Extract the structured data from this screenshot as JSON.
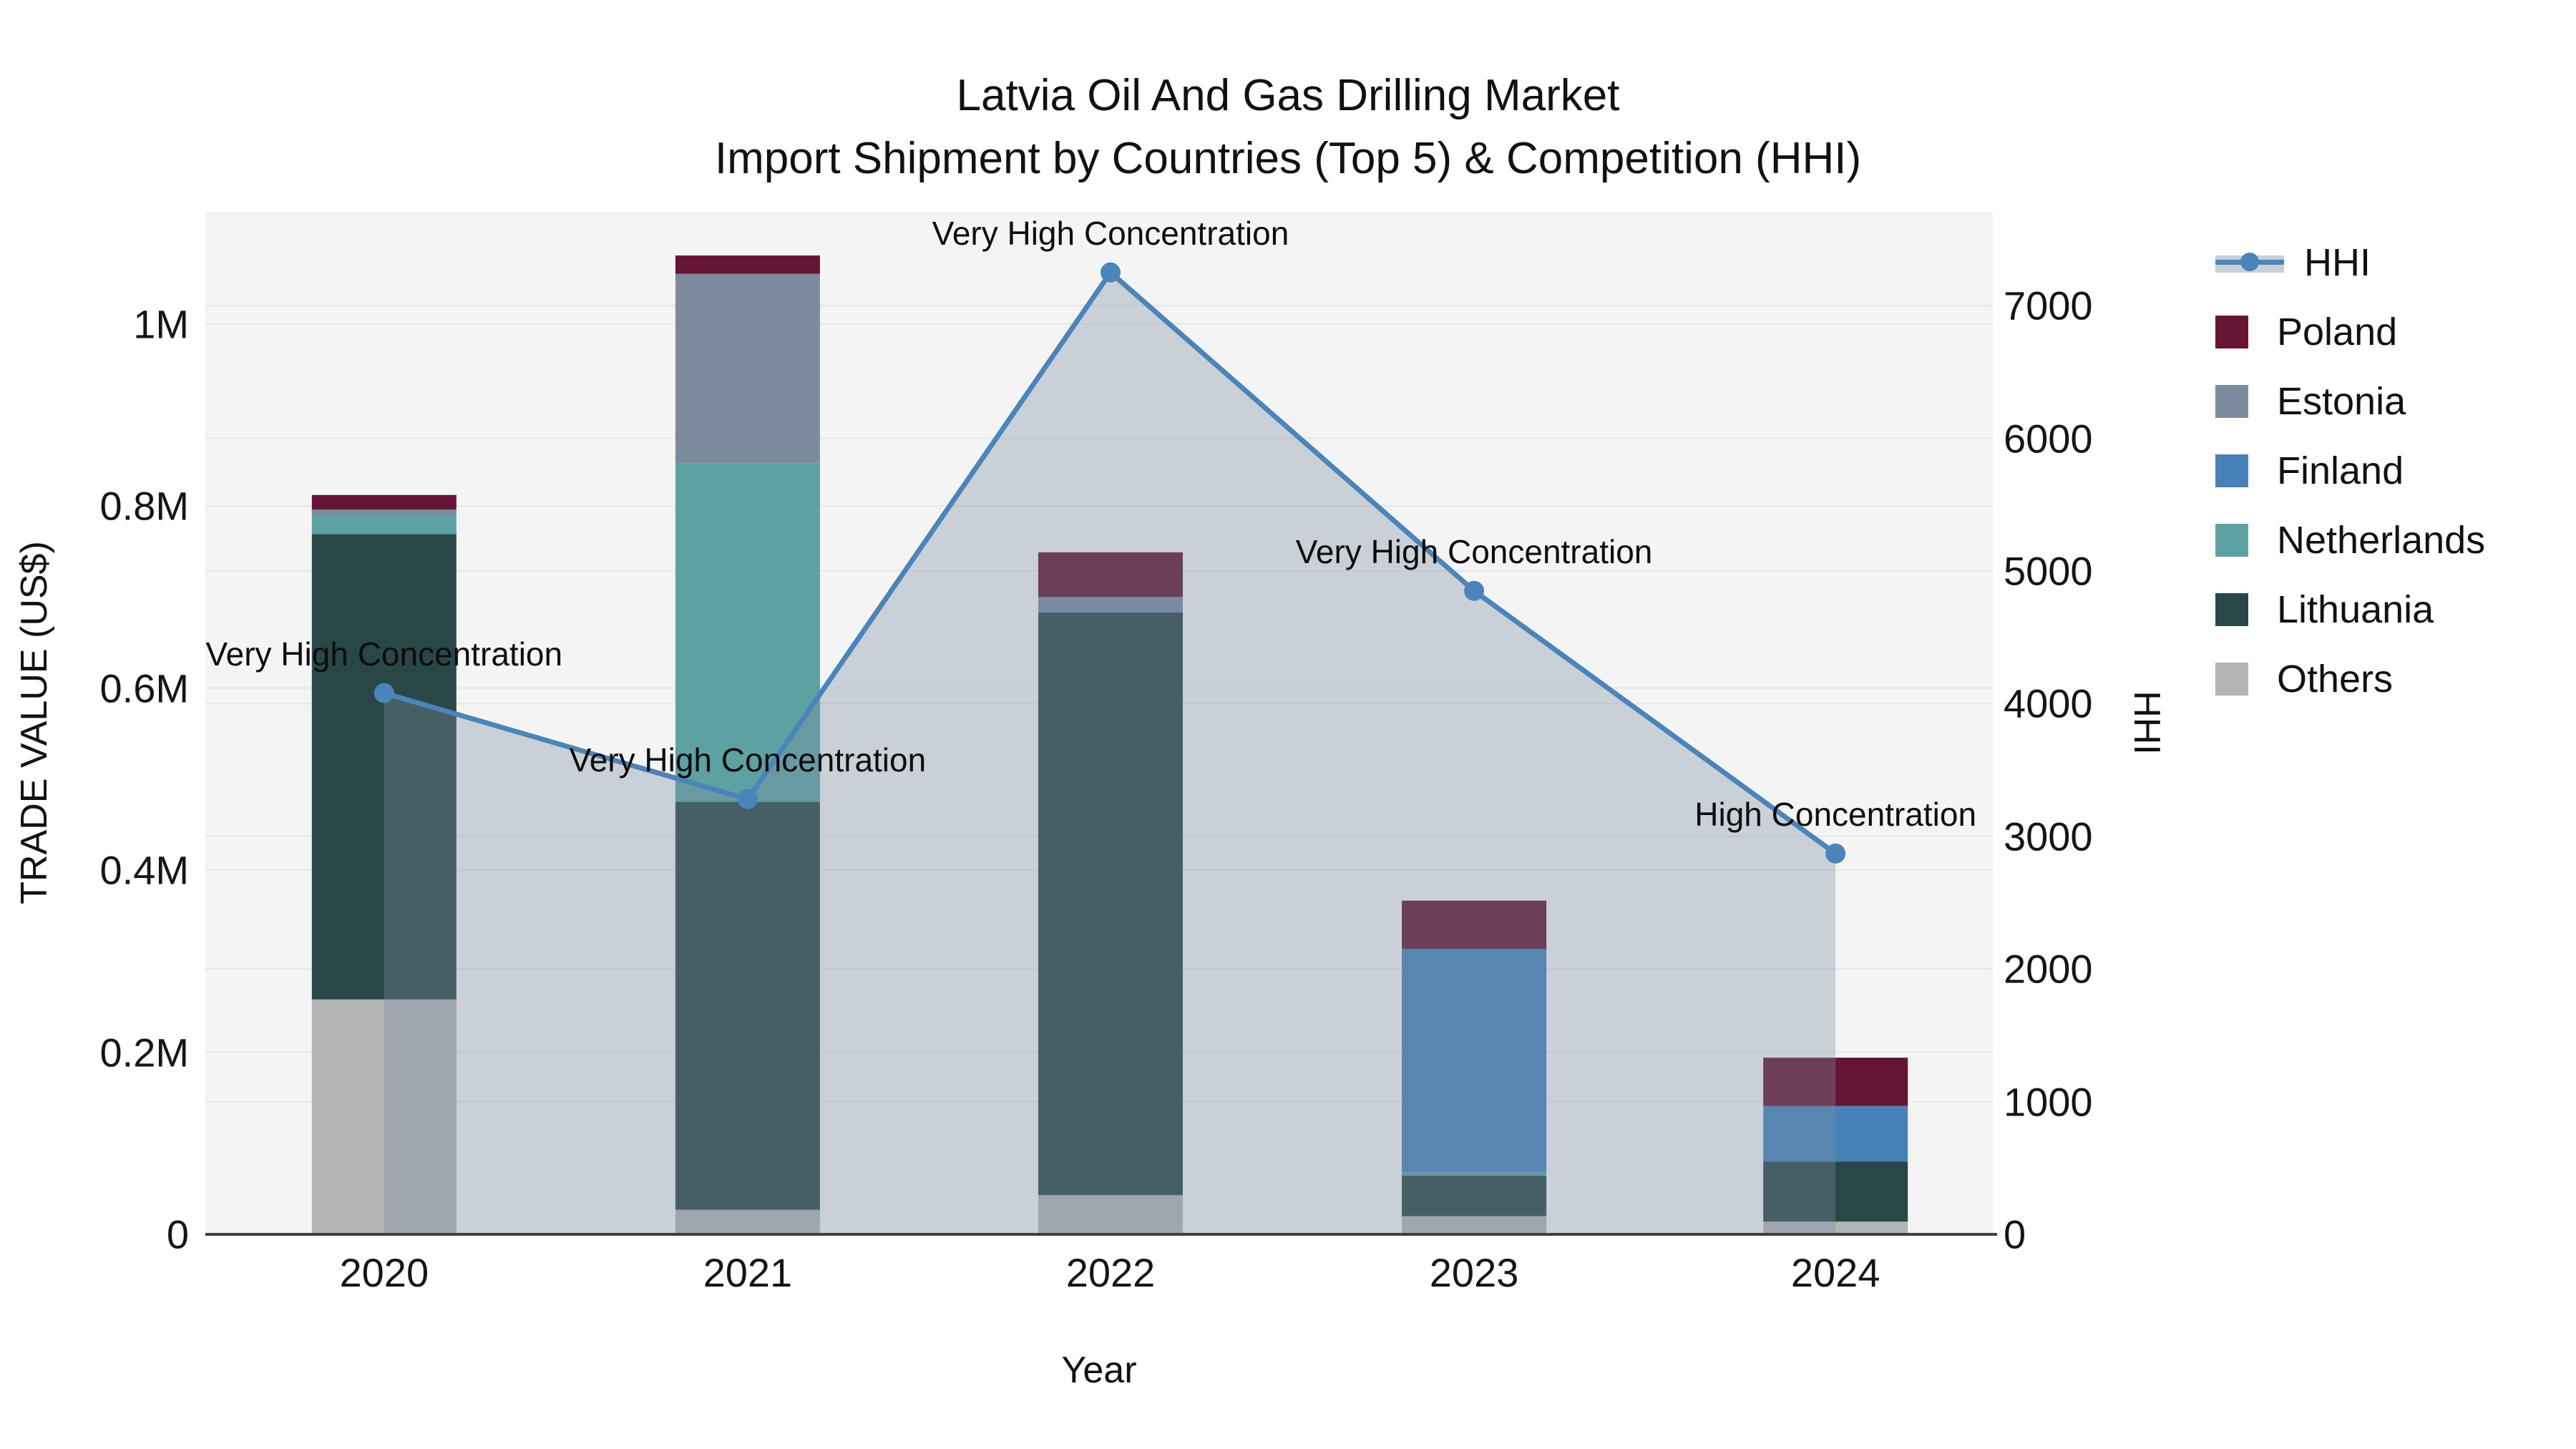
{
  "title_line1": "Latvia Oil And Gas Drilling Market",
  "title_line2": "Import Shipment by Countries (Top 5) & Competition (HHI)",
  "axes": {
    "y_left_title": "TRADE VALUE (US$)",
    "y_right_title": "HHI",
    "x_title": "Year",
    "y_left_tick_labels": [
      "0",
      "0.2M",
      "0.4M",
      "0.6M",
      "0.8M",
      "1M"
    ],
    "y_left_tick_values": [
      0,
      0.2,
      0.4,
      0.6,
      0.8,
      1.0
    ],
    "y_left_max": 1.123,
    "y_right_tick_labels": [
      "0",
      "1000",
      "2000",
      "3000",
      "4000",
      "5000",
      "6000",
      "7000"
    ],
    "y_right_tick_values": [
      0,
      1000,
      2000,
      3000,
      4000,
      5000,
      6000,
      7000
    ],
    "y_right_max": 7707
  },
  "chart_data": {
    "type": "bar+line",
    "title": "Latvia Oil And Gas Drilling Market — Import Shipment by Countries (Top 5) & Competition (HHI)",
    "categories": [
      "2020",
      "2021",
      "2022",
      "2023",
      "2024"
    ],
    "unit": "million US$",
    "stack_order_bottom_up": [
      "Others",
      "Lithuania",
      "Netherlands",
      "Finland",
      "Estonia",
      "Poland"
    ],
    "series": [
      {
        "name": "Poland",
        "color": "#651533",
        "values": [
          0.016,
          0.02,
          0.049,
          0.053,
          0.053
        ]
      },
      {
        "name": "Estonia",
        "color": "#7b8b9d",
        "values": [
          0.005,
          0.208,
          0.017,
          0.0,
          0.0
        ]
      },
      {
        "name": "Finland",
        "color": "#4682b8",
        "values": [
          0.0,
          0.0,
          0.0,
          0.245,
          0.061
        ]
      },
      {
        "name": "Netherlands",
        "color": "#5ea1a2",
        "values": [
          0.022,
          0.372,
          0.0,
          0.004,
          0.0
        ]
      },
      {
        "name": "Lithuania",
        "color": "#2a4747",
        "values": [
          0.511,
          0.448,
          0.64,
          0.0445,
          0.066
        ]
      },
      {
        "name": "Others",
        "color": "#b2b4b6",
        "values": [
          0.258,
          0.027,
          0.043,
          0.02,
          0.014
        ]
      }
    ],
    "bar_totals_musd": [
      0.812,
      1.075,
      0.749,
      0.3665,
      0.194
    ],
    "hhi": {
      "name": "HHI",
      "line_color": "#4b84b8",
      "area_color": "rgba(124,140,162,0.35)",
      "values": [
        4080,
        3280,
        7250,
        4850,
        2870
      ],
      "annotations": [
        "Very High Concentration",
        "Very High Concentration",
        "Very High Concentration",
        "Very High Concentration",
        "High Concentration"
      ]
    },
    "legend_position": "right",
    "grid": true
  },
  "legend": {
    "items": [
      {
        "label": "HHI",
        "type": "line"
      },
      {
        "label": "Poland",
        "type": "swatch",
        "color": "#651533"
      },
      {
        "label": "Estonia",
        "type": "swatch",
        "color": "#7b8b9d"
      },
      {
        "label": "Finland",
        "type": "swatch",
        "color": "#4682b8"
      },
      {
        "label": "Netherlands",
        "type": "swatch",
        "color": "#5ea1a2"
      },
      {
        "label": "Lithuania",
        "type": "swatch",
        "color": "#2a4747"
      },
      {
        "label": "Others",
        "type": "swatch",
        "color": "#b2b4b6"
      }
    ]
  },
  "colors": {
    "plot_bg": "#f4f4f5",
    "grid": "#e7e7e9",
    "axis_line": "#404040",
    "hhi_line": "#4b84b8",
    "hhi_area": "rgba(124,140,162,0.35)",
    "legend_band": "#c8cfd9"
  }
}
